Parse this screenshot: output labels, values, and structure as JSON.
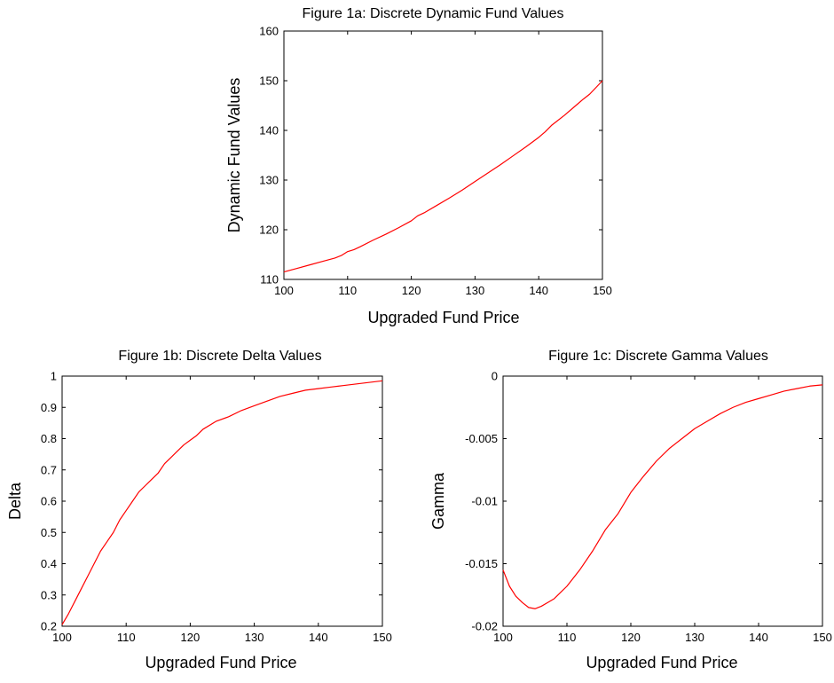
{
  "chart_data": [
    {
      "id": "a",
      "type": "line",
      "title": "Figure 1a: Discrete Dynamic Fund Values",
      "xlabel": "Upgraded Fund Price",
      "ylabel": "Dynamic Fund Values",
      "xlim": [
        100,
        150
      ],
      "ylim": [
        110,
        160
      ],
      "xticks": [
        100,
        110,
        120,
        130,
        140,
        150
      ],
      "yticks": [
        110,
        120,
        130,
        140,
        150,
        160
      ],
      "xtick_labels": [
        "100",
        "110",
        "120",
        "130",
        "140",
        "150"
      ],
      "ytick_labels": [
        "110",
        "120",
        "130",
        "140",
        "150",
        "160"
      ],
      "grid": false,
      "color": "#ff0000",
      "series": [
        {
          "x": [
            100,
            102,
            104,
            106,
            108,
            109,
            110,
            111,
            112,
            114,
            116,
            118,
            120,
            121,
            122,
            124,
            126,
            128,
            130,
            132,
            134,
            136,
            138,
            140,
            141,
            142,
            144,
            146,
            147,
            148,
            150
          ],
          "y": [
            111.5,
            112.2,
            112.9,
            113.6,
            114.3,
            114.8,
            115.6,
            116.0,
            116.6,
            117.9,
            119.1,
            120.4,
            121.8,
            122.8,
            123.4,
            124.9,
            126.4,
            128.0,
            129.7,
            131.4,
            133.1,
            134.9,
            136.7,
            138.6,
            139.7,
            141.0,
            143.0,
            145.2,
            146.3,
            147.3,
            150.0
          ]
        }
      ]
    },
    {
      "id": "b",
      "type": "line",
      "title": "Figure 1b: Discrete Delta Values",
      "xlabel": "Upgraded Fund Price",
      "ylabel": "Delta",
      "xlim": [
        100,
        150
      ],
      "ylim": [
        0.2,
        1
      ],
      "xticks": [
        100,
        110,
        120,
        130,
        140,
        150
      ],
      "yticks": [
        0.2,
        0.3,
        0.4,
        0.5,
        0.6,
        0.7,
        0.8,
        0.9,
        1
      ],
      "xtick_labels": [
        "100",
        "110",
        "120",
        "130",
        "140",
        "150"
      ],
      "ytick_labels": [
        "0.2",
        "0.3",
        "0.4",
        "0.5",
        "0.6",
        "0.7",
        "0.8",
        "0.9",
        "1"
      ],
      "grid": false,
      "color": "#ff0000",
      "series": [
        {
          "x": [
            100,
            101,
            102,
            103,
            104,
            105,
            106,
            107,
            108,
            109,
            110,
            111,
            112,
            113,
            114,
            115,
            116,
            117,
            118,
            119,
            120,
            121,
            122,
            124,
            126,
            128,
            130,
            132,
            134,
            136,
            138,
            140,
            142,
            144,
            146,
            148,
            150
          ],
          "y": [
            0.205,
            0.24,
            0.28,
            0.32,
            0.36,
            0.4,
            0.44,
            0.47,
            0.5,
            0.54,
            0.57,
            0.6,
            0.63,
            0.65,
            0.67,
            0.69,
            0.72,
            0.74,
            0.76,
            0.78,
            0.795,
            0.81,
            0.83,
            0.855,
            0.87,
            0.89,
            0.905,
            0.92,
            0.935,
            0.945,
            0.955,
            0.96,
            0.965,
            0.97,
            0.975,
            0.98,
            0.985
          ]
        }
      ]
    },
    {
      "id": "c",
      "type": "line",
      "title": "Figure 1c: Discrete Gamma Values",
      "xlabel": "Upgraded Fund Price",
      "ylabel": "Gamma",
      "xlim": [
        100,
        150
      ],
      "ylim": [
        -0.02,
        0
      ],
      "xticks": [
        100,
        110,
        120,
        130,
        140,
        150
      ],
      "yticks": [
        -0.02,
        -0.015,
        -0.01,
        -0.005,
        0
      ],
      "xtick_labels": [
        "100",
        "110",
        "120",
        "130",
        "140",
        "150"
      ],
      "ytick_labels": [
        "-0.02",
        "-0.015",
        "-0.01",
        "-0.005",
        "0"
      ],
      "grid": false,
      "color": "#ff0000",
      "series": [
        {
          "x": [
            100,
            101,
            102,
            103,
            104,
            105,
            106,
            107,
            108,
            110,
            112,
            114,
            116,
            118,
            120,
            122,
            124,
            126,
            128,
            130,
            132,
            134,
            136,
            138,
            140,
            142,
            144,
            146,
            148,
            150
          ],
          "y": [
            -0.0155,
            -0.0168,
            -0.0176,
            -0.0181,
            -0.0185,
            -0.0186,
            -0.0184,
            -0.0181,
            -0.0178,
            -0.0168,
            -0.0155,
            -0.014,
            -0.0123,
            -0.011,
            -0.0093,
            -0.008,
            -0.0068,
            -0.0058,
            -0.005,
            -0.0042,
            -0.0036,
            -0.003,
            -0.0025,
            -0.0021,
            -0.0018,
            -0.0015,
            -0.0012,
            -0.001,
            -0.0008,
            -0.0007
          ]
        }
      ]
    }
  ]
}
